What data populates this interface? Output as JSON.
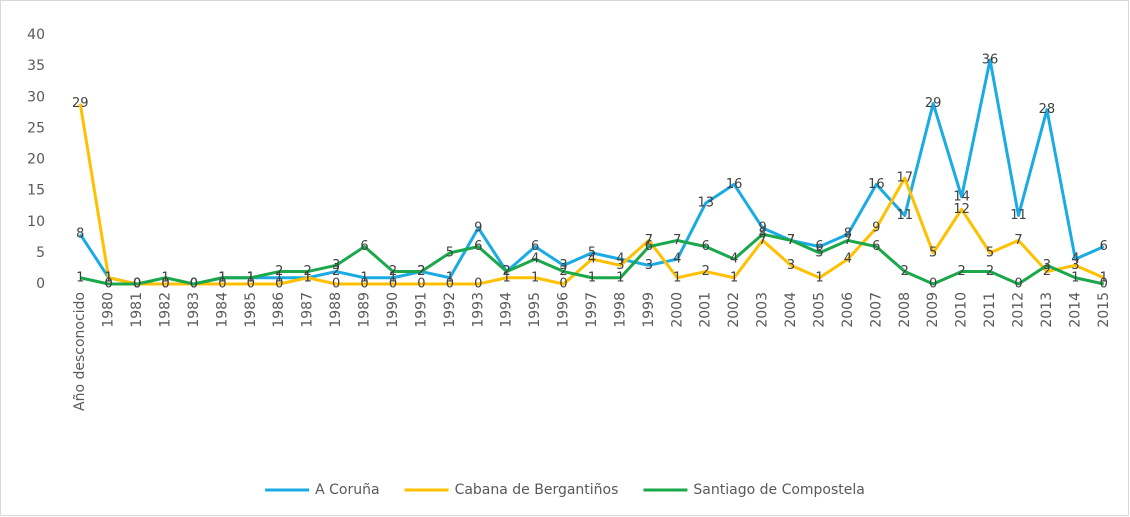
{
  "chart_data": {
    "type": "line",
    "categories": [
      "Año desconocido",
      "1980",
      "1981",
      "1982",
      "1983",
      "1984",
      "1985",
      "1986",
      "1987",
      "1988",
      "1989",
      "1990",
      "1991",
      "1992",
      "1993",
      "1994",
      "1995",
      "1996",
      "1997",
      "1998",
      "1999",
      "2000",
      "2001",
      "2002",
      "2003",
      "2004",
      "2005",
      "2006",
      "2007",
      "2008",
      "2009",
      "2010",
      "2011",
      "2012",
      "2013",
      "2014",
      "2015"
    ],
    "series": [
      {
        "name": "A Coruña",
        "color": "#1aabe5",
        "values": [
          8,
          1,
          0,
          0,
          0,
          1,
          1,
          1,
          1,
          2,
          1,
          1,
          2,
          1,
          9,
          2,
          6,
          3,
          5,
          4,
          3,
          4,
          13,
          16,
          9,
          7,
          6,
          8,
          16,
          11,
          29,
          14,
          36,
          11,
          28,
          4,
          6
        ]
      },
      {
        "name": "Cabana de Bergantiños",
        "color": "#ffc000",
        "values": [
          29,
          1,
          0,
          0,
          0,
          0,
          0,
          0,
          1,
          0,
          0,
          0,
          0,
          0,
          0,
          1,
          1,
          0,
          4,
          3,
          7,
          1,
          2,
          1,
          7,
          3,
          1,
          4,
          9,
          17,
          5,
          12,
          5,
          7,
          2,
          3,
          1
        ]
      },
      {
        "name": "Santiago de Compostela",
        "color": "#1aa84a",
        "values": [
          1,
          0,
          0,
          1,
          0,
          1,
          1,
          2,
          2,
          3,
          6,
          2,
          2,
          5,
          6,
          2,
          4,
          2,
          1,
          1,
          6,
          7,
          6,
          4,
          8,
          7,
          5,
          7,
          6,
          2,
          0,
          2,
          2,
          0,
          3,
          1,
          0
        ]
      }
    ],
    "ylim": [
      0,
      40
    ],
    "yticks": [
      0,
      5,
      10,
      15,
      20,
      25,
      30,
      35,
      40
    ],
    "grid": false,
    "legend": "bottom"
  }
}
